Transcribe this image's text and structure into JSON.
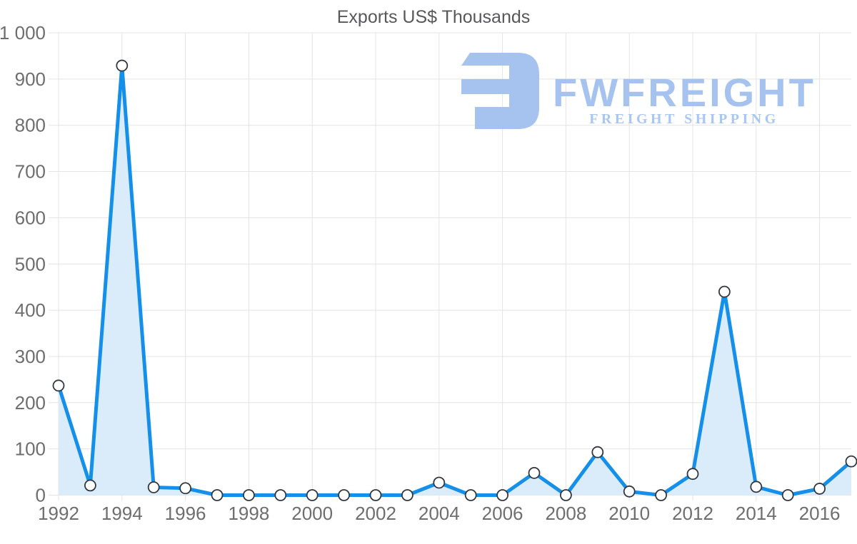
{
  "chart_data": {
    "type": "line",
    "title": "Exports US$ Thousands",
    "xlabel": "",
    "ylabel": "",
    "x": [
      1992,
      1993,
      1994,
      1995,
      1996,
      1997,
      1998,
      1999,
      2000,
      2001,
      2002,
      2003,
      2004,
      2005,
      2006,
      2007,
      2008,
      2009,
      2010,
      2011,
      2012,
      2013,
      2014,
      2015,
      2016,
      2017
    ],
    "values": [
      237,
      21,
      929,
      17,
      15,
      0,
      0,
      0,
      0,
      0,
      0,
      0,
      27,
      0,
      0,
      48,
      0,
      93,
      8,
      0,
      46,
      440,
      18,
      0,
      14,
      73
    ],
    "ylim": [
      0,
      1000
    ],
    "y_ticks": [
      0,
      100,
      200,
      300,
      400,
      500,
      600,
      700,
      800,
      900,
      1000
    ],
    "y_tick_labels": [
      "0",
      "100",
      "200",
      "300",
      "400",
      "500",
      "600",
      "700",
      "800",
      "900",
      "1 000"
    ],
    "x_tick_years": [
      1992,
      1994,
      1996,
      1998,
      2000,
      2002,
      2004,
      2006,
      2008,
      2010,
      2012,
      2014,
      2016
    ],
    "grid": true,
    "legend": "none",
    "colors": {
      "line": "#1590ea",
      "area": "#daecfa",
      "marker_fill": "#ffffff",
      "marker_stroke": "#333840",
      "grid": "#e4e4e4",
      "tick_label": "#6e6e6e",
      "title": "#58585a"
    }
  },
  "watermark": {
    "brand": "FWFREIGHT",
    "tagline": "FREIGHT SHIPPING",
    "icon": "fwfreight-mark",
    "brand_color": "#a6c3ef",
    "tagline_color": "#a9c7f3"
  }
}
